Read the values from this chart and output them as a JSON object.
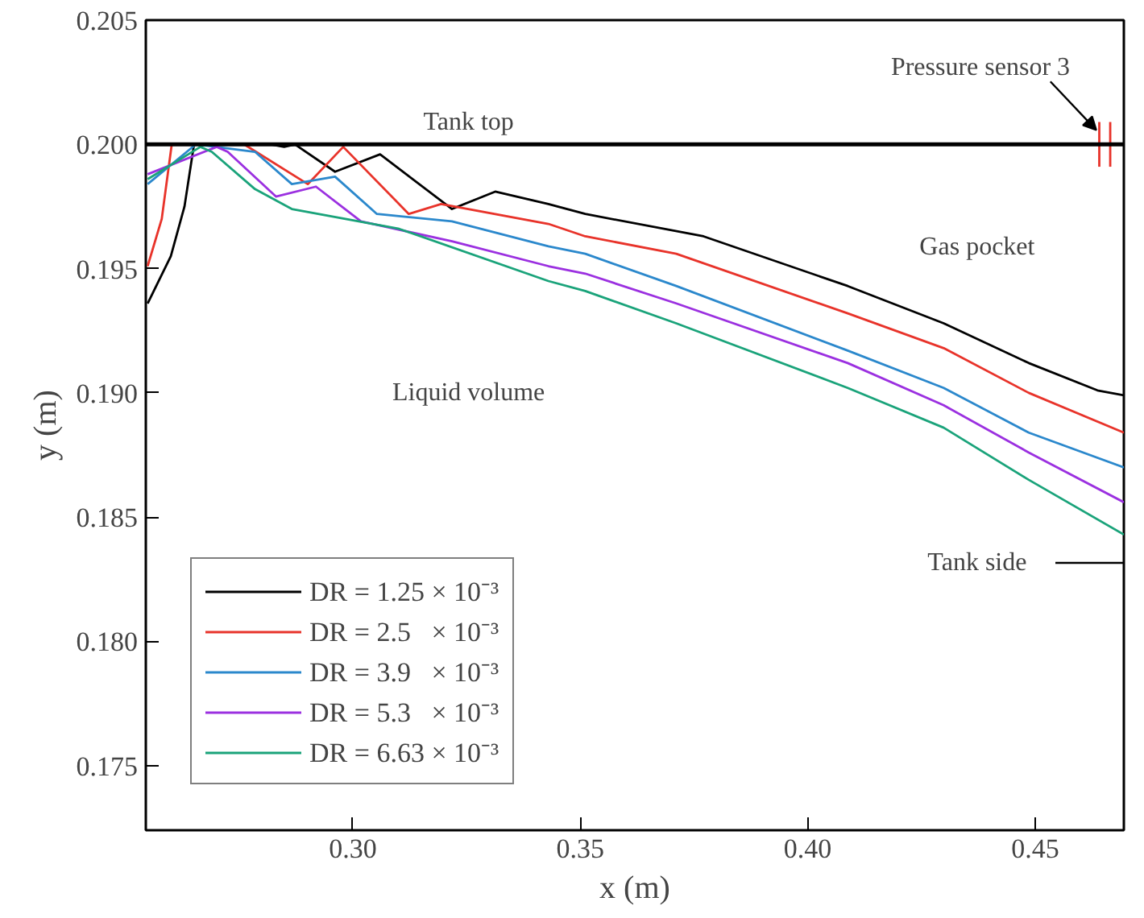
{
  "chart_data": {
    "type": "line",
    "xlabel": "x (m)",
    "ylabel": "y (m)",
    "xlim": [
      0.2545,
      0.4695
    ],
    "ylim": [
      0.1724,
      0.205
    ],
    "xticks": [
      {
        "value": 0.3,
        "label": "0.30"
      },
      {
        "value": 0.35,
        "label": "0.35"
      },
      {
        "value": 0.4,
        "label": "0.40"
      },
      {
        "value": 0.45,
        "label": "0.45"
      }
    ],
    "yticks": [
      0.175,
      {
        "value": 0.18,
        "label": "0.180"
      },
      0.185,
      {
        "value": 0.19,
        "label": "0.190"
      },
      0.195,
      {
        "value": 0.2,
        "label": "0.200"
      },
      0.205
    ],
    "grid": false,
    "legend": "bottom left",
    "line_style": "solid",
    "marker": "none",
    "ref_lines": [
      {
        "axis": "y",
        "value": 0.2,
        "label": "Tank top",
        "color": "#000000"
      }
    ],
    "annotations": [
      {
        "text": "Pressure sensor 3",
        "x": 0.4641,
        "y": 0.2009
      },
      "Gas pocket",
      "Liquid volume",
      "Tank side"
    ],
    "series": [
      {
        "name": "DR = 1.25 × 10⁻³",
        "color": "#000000",
        "x": [
          0.2549,
          0.26,
          0.263,
          0.2651,
          0.282,
          0.2849,
          0.2873,
          0.2961,
          0.306,
          0.3218,
          0.3313,
          0.343,
          0.3511,
          0.3771,
          0.4088,
          0.4299,
          0.4486,
          0.4637,
          0.4695
        ],
        "values": [
          0.1936,
          0.1955,
          0.1975,
          0.2,
          0.2,
          0.1999,
          0.2,
          0.1989,
          0.1996,
          0.1974,
          0.1981,
          0.1976,
          0.1972,
          0.1963,
          0.1943,
          0.1928,
          0.1912,
          0.1901,
          0.1899
        ]
      },
      {
        "name": "DR = 2.5   × 10⁻³",
        "color": "#e8332a",
        "x": [
          0.2549,
          0.258,
          0.2602,
          0.2761,
          0.2901,
          0.2979,
          0.3123,
          0.3194,
          0.343,
          0.3511,
          0.3711,
          0.4088,
          0.4299,
          0.4486,
          0.4695
        ],
        "values": [
          0.1951,
          0.197,
          0.2,
          0.2,
          0.1984,
          0.1999,
          0.1972,
          0.1976,
          0.1968,
          0.1963,
          0.1956,
          0.1932,
          0.1918,
          0.19,
          0.1884
        ]
      },
      {
        "name": "DR = 3.9   × 10⁻³",
        "color": "#2b88cc",
        "x": [
          0.2549,
          0.2655,
          0.2785,
          0.2866,
          0.2961,
          0.3053,
          0.3218,
          0.343,
          0.3511,
          0.3711,
          0.4088,
          0.4299,
          0.4486,
          0.4695
        ],
        "values": [
          0.1984,
          0.2,
          0.1997,
          0.1984,
          0.1987,
          0.1972,
          0.1969,
          0.1959,
          0.1956,
          0.1943,
          0.1917,
          0.1902,
          0.1884,
          0.187
        ]
      },
      {
        "name": "DR = 5.3   × 10⁻³",
        "color": "#9b30e0",
        "x": [
          0.2549,
          0.2701,
          0.2725,
          0.2831,
          0.2919,
          0.3018,
          0.3218,
          0.343,
          0.3511,
          0.3711,
          0.4088,
          0.4299,
          0.4486,
          0.4695
        ],
        "values": [
          0.1988,
          0.1999,
          0.1997,
          0.1979,
          0.1983,
          0.1969,
          0.1961,
          0.1951,
          0.1948,
          0.1936,
          0.1912,
          0.1895,
          0.1876,
          0.1856
        ]
      },
      {
        "name": "DR = 6.63 × 10⁻³",
        "color": "#1aa37a",
        "x": [
          0.2549,
          0.2665,
          0.269,
          0.2785,
          0.2866,
          0.3102,
          0.343,
          0.3511,
          0.3711,
          0.4088,
          0.4299,
          0.4486,
          0.4695
        ],
        "values": [
          0.1986,
          0.1999,
          0.1997,
          0.1982,
          0.1974,
          0.1966,
          0.1945,
          0.1941,
          0.1928,
          0.1902,
          0.1886,
          0.1865,
          0.1843
        ]
      },
      {
        "color": "#e8332a",
        "x": [
          0.4641,
          0.4641
        ],
        "values": [
          0.1991,
          0.2009
        ]
      },
      {
        "color": "#e8332a",
        "x": [
          0.4665,
          0.4665
        ],
        "values": [
          0.1991,
          0.2009
        ]
      }
    ]
  }
}
